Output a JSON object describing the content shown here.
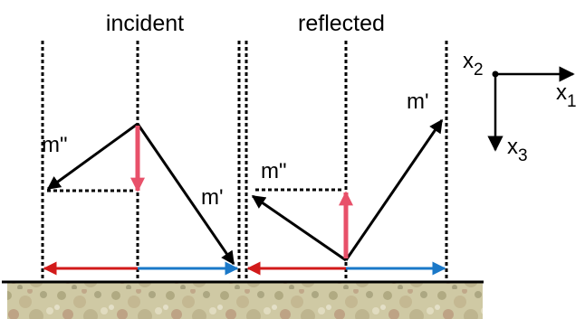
{
  "labels": {
    "incident": "incident",
    "reflected": "reflected",
    "m_double_left": "m\"",
    "m_prime_left": "m'",
    "m_double_right": "m\"",
    "m_prime_right": "m'"
  },
  "axes": {
    "x2": {
      "base": "x",
      "sub": "2"
    },
    "x1": {
      "base": "x",
      "sub": "1"
    },
    "x3": {
      "base": "x",
      "sub": "3"
    }
  },
  "colors": {
    "ink": "#000000",
    "pink": "#e8516a",
    "red": "#d21a1a",
    "blue": "#1a78c8",
    "ground_base": "#cfc9a4"
  }
}
